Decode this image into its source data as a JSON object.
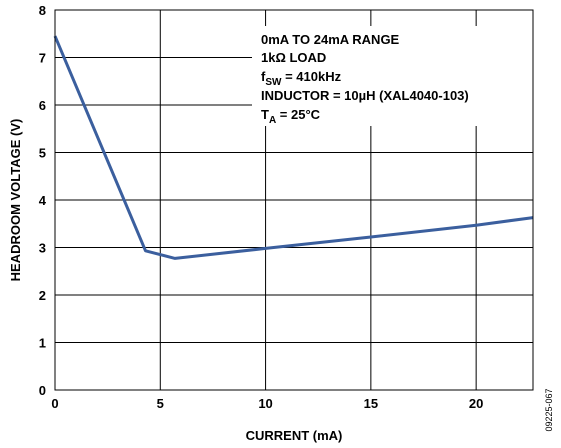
{
  "chart_data": {
    "type": "line",
    "xlabel": "CURRENT (mA)",
    "ylabel": "HEADROOM VOLTAGE (V)",
    "xlim": [
      0,
      22.7
    ],
    "ylim": [
      0,
      8
    ],
    "x_ticks": [
      0,
      5,
      10,
      15,
      20
    ],
    "y_ticks": [
      0,
      1,
      2,
      3,
      4,
      5,
      6,
      7,
      8
    ],
    "grid": true,
    "series": [
      {
        "color": "#3b5f9e",
        "x": [
          0,
          4.3,
          5.7,
          10,
          15,
          20,
          22.7
        ],
        "y": [
          7.45,
          2.93,
          2.77,
          2.98,
          3.22,
          3.47,
          3.63
        ]
      }
    ],
    "annotations": {
      "range": "0mA TO 24mA RANGE",
      "load": "1kΩ LOAD",
      "fsw_main": "f",
      "fsw_sub": "SW",
      "fsw_rest": " = 410kHz",
      "inductor": "INDUCTOR = 10µH (XAL4040-103)",
      "ta_main": "T",
      "ta_sub": "A",
      "ta_rest": " = 25°C"
    },
    "figure_id": "09225-067"
  }
}
